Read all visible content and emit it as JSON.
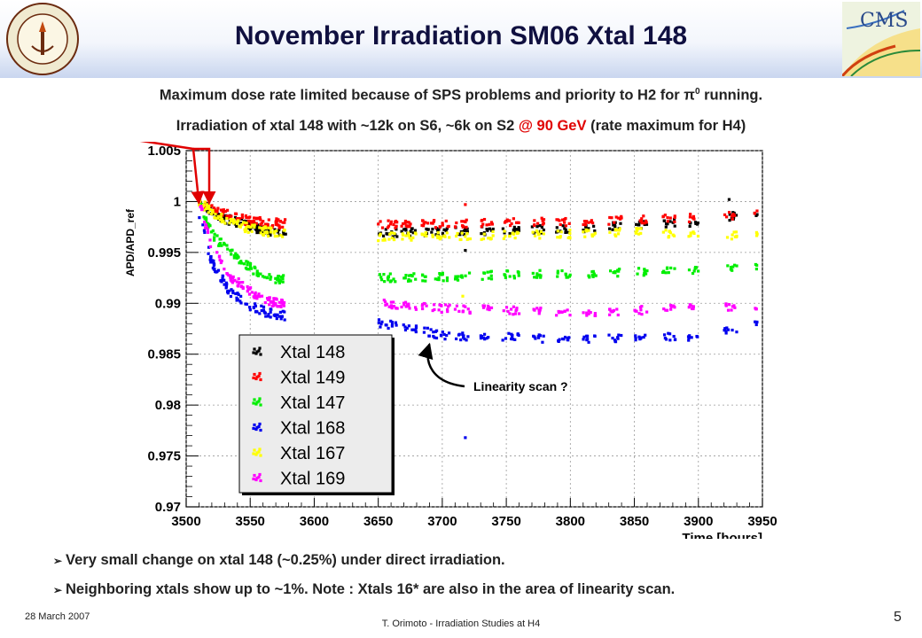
{
  "slide": {
    "title": "November Irradiation SM06 Xtal 148",
    "line1_prefix": "Maximum dose rate limited because of SPS problems and priority to H2 for ",
    "line1_pi": "π",
    "line1_sup": "0",
    "line1_suffix": " running.",
    "line2_prefix": "Irradiation of xtal 148 with ~12k on S6, ~6k on S2 ",
    "line2_highlight": "@ 90 GeV",
    "line2_suffix": " (rate maximum for H4)",
    "bullets": [
      "Very small change on xtal 148 (~0.25%) under direct irradiation.",
      "Neighboring xtals show up to ~1%. Note : Xtals 16* are also in the area of linearity scan."
    ],
    "footer_date": "28 March 2007",
    "footer_author": "T. Orimoto - Irradiation Studies at H4",
    "page_number": "5"
  },
  "chart_data": {
    "type": "scatter",
    "xlabel": "Time [hours]",
    "ylabel": "APD/APD_ref",
    "xlim": [
      3500,
      3950
    ],
    "ylim": [
      0.97,
      1.005
    ],
    "x_ticks": [
      3500,
      3550,
      3600,
      3650,
      3700,
      3750,
      3800,
      3850,
      3900,
      3950
    ],
    "y_ticks": [
      0.97,
      0.975,
      0.98,
      0.985,
      0.99,
      0.995,
      1,
      1.005
    ],
    "y_tick_labels": [
      "0.97",
      "0.975",
      "0.98",
      "0.985",
      "0.99",
      "0.995",
      "1",
      "1.005"
    ],
    "grid": true,
    "legend_position": "lower-left",
    "annotation": "Linearity scan ?",
    "annotation_target": [
      3690,
      0.9865
    ],
    "arrows_target_x": [
      3510,
      3518
    ],
    "segments": [
      [
        3650,
        3665
      ],
      [
        3668,
        3680
      ],
      [
        3684,
        3700
      ],
      [
        3700,
        3706
      ],
      [
        3710,
        3722
      ],
      [
        3730,
        3740
      ],
      [
        3747,
        3760
      ],
      [
        3770,
        3780
      ],
      [
        3789,
        3800
      ],
      [
        3810,
        3820
      ],
      [
        3830,
        3840
      ],
      [
        3850,
        3860
      ],
      [
        3872,
        3882
      ],
      [
        3892,
        3900
      ],
      [
        3920,
        3930
      ],
      [
        3944,
        3946
      ]
    ],
    "series": [
      {
        "name": "Xtal 148",
        "color": "#000000",
        "early": [
          [
            3510,
            1.0
          ],
          [
            3525,
            0.9985
          ],
          [
            3545,
            0.9978
          ],
          [
            3565,
            0.997
          ],
          [
            3578,
            0.9968
          ]
        ],
        "late": [
          [
            3650,
            0.9969
          ],
          [
            3700,
            0.997
          ],
          [
            3750,
            0.9972
          ],
          [
            3800,
            0.9973
          ],
          [
            3850,
            0.9977
          ],
          [
            3900,
            0.998
          ],
          [
            3946,
            0.999
          ]
        ]
      },
      {
        "name": "Xtal 149",
        "color": "#ff0000",
        "early": [
          [
            3510,
            1.0
          ],
          [
            3525,
            0.999
          ],
          [
            3545,
            0.9982
          ],
          [
            3565,
            0.9979
          ],
          [
            3578,
            0.9978
          ]
        ],
        "late": [
          [
            3650,
            0.9978
          ],
          [
            3700,
            0.9978
          ],
          [
            3750,
            0.998
          ],
          [
            3800,
            0.998
          ],
          [
            3850,
            0.9982
          ],
          [
            3900,
            0.9984
          ],
          [
            3946,
            0.9988
          ]
        ]
      },
      {
        "name": "Xtal 147",
        "color": "#00ee00",
        "early": [
          [
            3510,
            1.0
          ],
          [
            3522,
            0.9965
          ],
          [
            3535,
            0.995
          ],
          [
            3550,
            0.9935
          ],
          [
            3565,
            0.9925
          ],
          [
            3578,
            0.9923
          ]
        ],
        "late": [
          [
            3650,
            0.9925
          ],
          [
            3700,
            0.9926
          ],
          [
            3750,
            0.9928
          ],
          [
            3800,
            0.9929
          ],
          [
            3850,
            0.9931
          ],
          [
            3900,
            0.9933
          ],
          [
            3946,
            0.9935
          ]
        ]
      },
      {
        "name": "Xtal 168",
        "color": "#0000ee",
        "early": [
          [
            3510,
            0.999
          ],
          [
            3520,
            0.994
          ],
          [
            3535,
            0.991
          ],
          [
            3550,
            0.9898
          ],
          [
            3565,
            0.989
          ],
          [
            3578,
            0.9888
          ]
        ],
        "late": [
          [
            3650,
            0.9881
          ],
          [
            3680,
            0.9875
          ],
          [
            3700,
            0.9868
          ],
          [
            3750,
            0.9867
          ],
          [
            3800,
            0.9864
          ],
          [
            3850,
            0.9867
          ],
          [
            3900,
            0.9866
          ],
          [
            3946,
            0.988
          ]
        ]
      },
      {
        "name": "Xtal 167",
        "color": "#ffff00",
        "early": [
          [
            3510,
            1.0
          ],
          [
            3525,
            0.9985
          ],
          [
            3545,
            0.9975
          ],
          [
            3565,
            0.997
          ],
          [
            3578,
            0.9969
          ]
        ],
        "late": [
          [
            3650,
            0.9965
          ],
          [
            3700,
            0.9966
          ],
          [
            3750,
            0.9967
          ],
          [
            3800,
            0.9968
          ],
          [
            3850,
            0.997
          ],
          [
            3900,
            0.9966
          ],
          [
            3946,
            0.9968
          ]
        ]
      },
      {
        "name": "Xtal 169",
        "color": "#ff00ff",
        "early": [
          [
            3510,
            1.0
          ],
          [
            3520,
            0.9955
          ],
          [
            3535,
            0.9925
          ],
          [
            3550,
            0.9912
          ],
          [
            3565,
            0.9902
          ],
          [
            3578,
            0.9898
          ]
        ],
        "late": [
          [
            3650,
            0.99
          ],
          [
            3700,
            0.9895
          ],
          [
            3750,
            0.9893
          ],
          [
            3800,
            0.9891
          ],
          [
            3850,
            0.9893
          ],
          [
            3900,
            0.9895
          ],
          [
            3946,
            0.9898
          ]
        ]
      }
    ],
    "outliers": [
      {
        "x": 3718,
        "y": 0.9997,
        "color": "#ff0000"
      },
      {
        "x": 3718,
        "y": 0.9952,
        "color": "#000000"
      },
      {
        "x": 3716,
        "y": 0.9907,
        "color": "#ffff00"
      },
      {
        "x": 3718,
        "y": 0.9768,
        "color": "#0000ee"
      },
      {
        "x": 3924,
        "y": 1.0002,
        "color": "#000000"
      }
    ]
  }
}
